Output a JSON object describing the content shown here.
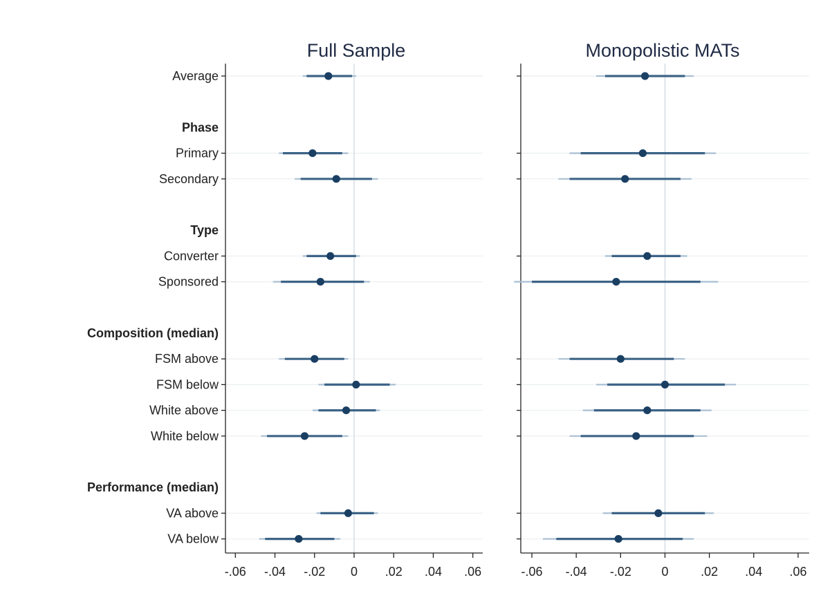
{
  "chart_data": {
    "type": "coefplot",
    "rows": [
      {
        "label": "Average",
        "kind": "item"
      },
      {
        "label": "",
        "kind": "gap"
      },
      {
        "label": "Phase",
        "kind": "header"
      },
      {
        "label": "Primary",
        "kind": "item"
      },
      {
        "label": "Secondary",
        "kind": "item"
      },
      {
        "label": "",
        "kind": "gap"
      },
      {
        "label": "Type",
        "kind": "header"
      },
      {
        "label": "Converter",
        "kind": "item"
      },
      {
        "label": "Sponsored",
        "kind": "item"
      },
      {
        "label": "",
        "kind": "gap"
      },
      {
        "label": "Composition (median)",
        "kind": "header"
      },
      {
        "label": "FSM above",
        "kind": "item"
      },
      {
        "label": "FSM below",
        "kind": "item"
      },
      {
        "label": "White above",
        "kind": "item"
      },
      {
        "label": "White below",
        "kind": "item"
      },
      {
        "label": "",
        "kind": "gap"
      },
      {
        "label": "Performance (median)",
        "kind": "header"
      },
      {
        "label": "VA above",
        "kind": "item"
      },
      {
        "label": "VA below",
        "kind": "item"
      }
    ],
    "xlim": [
      -0.065,
      0.065
    ],
    "ticks": [
      -0.06,
      -0.04,
      -0.02,
      0,
      0.02,
      0.04,
      0.06
    ],
    "tick_labels": [
      "-.06",
      "-.04",
      "-.02",
      "0",
      ".02",
      ".04",
      ".06"
    ],
    "zero_line": true,
    "gridlines": "horizontal",
    "colors": {
      "point": "#1a3f63",
      "ci_inner": "#3d6487",
      "ci_outer": "#a9bfd3",
      "grid": "#eef1f4",
      "zero": "#d6dee6",
      "axis": "#222222",
      "title": "#1f2a44"
    },
    "panels": [
      {
        "title": "Full Sample",
        "series": [
          {
            "label": "Average",
            "estimate": -0.013,
            "ci_inner": [
              -0.024,
              -0.001
            ],
            "ci_outer": [
              -0.026,
              0.001
            ]
          },
          {
            "label": "Primary",
            "estimate": -0.021,
            "ci_inner": [
              -0.036,
              -0.006
            ],
            "ci_outer": [
              -0.038,
              -0.003
            ]
          },
          {
            "label": "Secondary",
            "estimate": -0.009,
            "ci_inner": [
              -0.027,
              0.009
            ],
            "ci_outer": [
              -0.03,
              0.012
            ]
          },
          {
            "label": "Converter",
            "estimate": -0.012,
            "ci_inner": [
              -0.024,
              0.001
            ],
            "ci_outer": [
              -0.026,
              0.003
            ]
          },
          {
            "label": "Sponsored",
            "estimate": -0.017,
            "ci_inner": [
              -0.037,
              0.005
            ],
            "ci_outer": [
              -0.041,
              0.008
            ]
          },
          {
            "label": "FSM above",
            "estimate": -0.02,
            "ci_inner": [
              -0.035,
              -0.005
            ],
            "ci_outer": [
              -0.038,
              -0.003
            ]
          },
          {
            "label": "FSM below",
            "estimate": 0.001,
            "ci_inner": [
              -0.015,
              0.018
            ],
            "ci_outer": [
              -0.018,
              0.021
            ]
          },
          {
            "label": "White above",
            "estimate": -0.004,
            "ci_inner": [
              -0.018,
              0.011
            ],
            "ci_outer": [
              -0.021,
              0.013
            ]
          },
          {
            "label": "White below",
            "estimate": -0.025,
            "ci_inner": [
              -0.044,
              -0.006
            ],
            "ci_outer": [
              -0.047,
              -0.003
            ]
          },
          {
            "label": "VA above",
            "estimate": -0.003,
            "ci_inner": [
              -0.017,
              0.01
            ],
            "ci_outer": [
              -0.019,
              0.012
            ]
          },
          {
            "label": "VA below",
            "estimate": -0.028,
            "ci_inner": [
              -0.045,
              -0.01
            ],
            "ci_outer": [
              -0.048,
              -0.007
            ]
          }
        ]
      },
      {
        "title": "Monopolistic MATs",
        "series": [
          {
            "label": "Average",
            "estimate": -0.009,
            "ci_inner": [
              -0.027,
              0.009
            ],
            "ci_outer": [
              -0.031,
              0.013
            ]
          },
          {
            "label": "Primary",
            "estimate": -0.01,
            "ci_inner": [
              -0.038,
              0.018
            ],
            "ci_outer": [
              -0.043,
              0.023
            ]
          },
          {
            "label": "Secondary",
            "estimate": -0.018,
            "ci_inner": [
              -0.043,
              0.007
            ],
            "ci_outer": [
              -0.048,
              0.012
            ]
          },
          {
            "label": "Converter",
            "estimate": -0.008,
            "ci_inner": [
              -0.024,
              0.007
            ],
            "ci_outer": [
              -0.027,
              0.01
            ]
          },
          {
            "label": "Sponsored",
            "estimate": -0.022,
            "ci_inner": [
              -0.06,
              0.016
            ],
            "ci_outer": [
              -0.068,
              0.024
            ]
          },
          {
            "label": "FSM above",
            "estimate": -0.02,
            "ci_inner": [
              -0.043,
              0.004
            ],
            "ci_outer": [
              -0.048,
              0.009
            ]
          },
          {
            "label": "FSM below",
            "estimate": 0.0,
            "ci_inner": [
              -0.026,
              0.027
            ],
            "ci_outer": [
              -0.031,
              0.032
            ]
          },
          {
            "label": "White above",
            "estimate": -0.008,
            "ci_inner": [
              -0.032,
              0.016
            ],
            "ci_outer": [
              -0.037,
              0.021
            ]
          },
          {
            "label": "White below",
            "estimate": -0.013,
            "ci_inner": [
              -0.038,
              0.013
            ],
            "ci_outer": [
              -0.043,
              0.019
            ]
          },
          {
            "label": "VA above",
            "estimate": -0.003,
            "ci_inner": [
              -0.024,
              0.018
            ],
            "ci_outer": [
              -0.028,
              0.022
            ]
          },
          {
            "label": "VA below",
            "estimate": -0.021,
            "ci_inner": [
              -0.049,
              0.008
            ],
            "ci_outer": [
              -0.055,
              0.013
            ]
          }
        ]
      }
    ]
  }
}
